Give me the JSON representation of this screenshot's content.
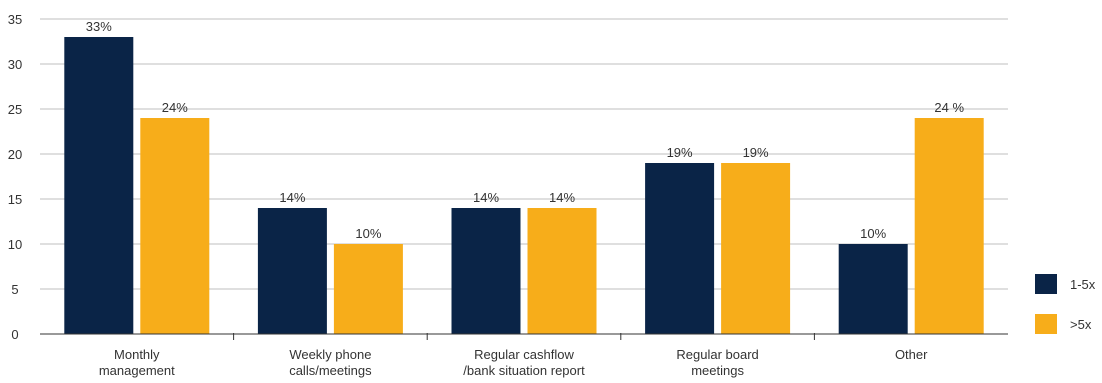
{
  "chart_data": {
    "type": "bar",
    "categories": [
      [
        "Monthly",
        "management"
      ],
      [
        "Weekly phone",
        "calls/meetings"
      ],
      [
        "Regular cashflow",
        "/bank situation report"
      ],
      [
        "Regular board",
        "meetings"
      ],
      [
        "Other"
      ]
    ],
    "series": [
      {
        "name": "1-5x",
        "color": "#0a2447",
        "values": [
          33,
          14,
          14,
          19,
          10
        ],
        "labels": [
          "33%",
          "14%",
          "14%",
          "19%",
          "10%"
        ]
      },
      {
        "name": ">5x",
        "color": "#f7ad1a",
        "values": [
          24,
          10,
          14,
          19,
          24
        ],
        "labels": [
          "24%",
          "10%",
          "14%",
          "19%",
          "24 %"
        ]
      }
    ],
    "ylim": [
      0,
      35
    ],
    "yticks": [
      0,
      5,
      10,
      15,
      20,
      25,
      30,
      35
    ],
    "grid": true,
    "legend": "right",
    "title": "",
    "xlabel": "",
    "ylabel": ""
  }
}
